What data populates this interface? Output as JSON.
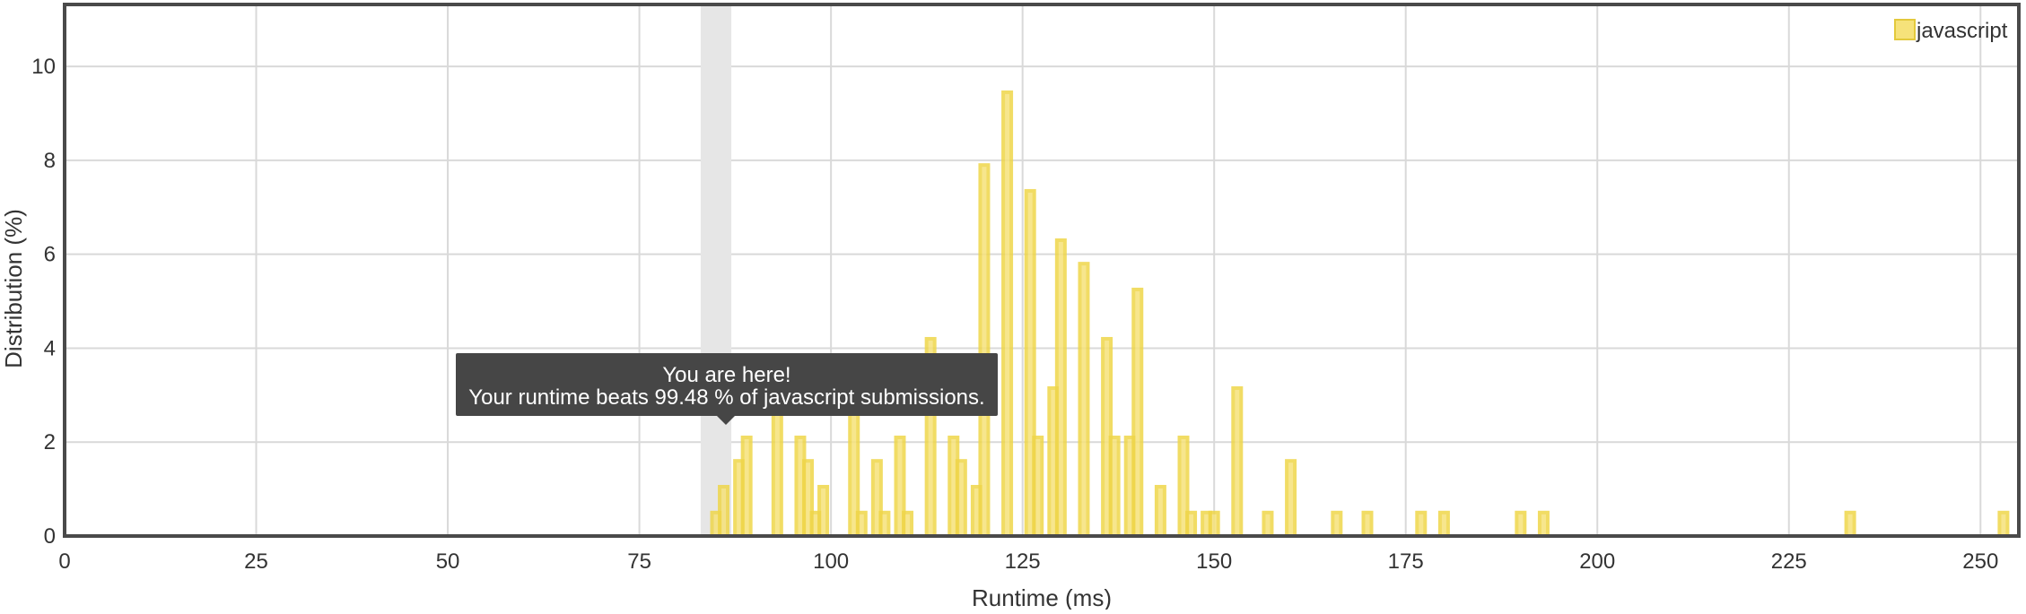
{
  "chart_data": {
    "type": "bar",
    "title": "",
    "xlabel": "Runtime (ms)",
    "ylabel": "Distribution (%)",
    "xlim": [
      0,
      255
    ],
    "ylim": [
      0,
      11.3
    ],
    "x_ticks": [
      0,
      25,
      50,
      75,
      100,
      125,
      150,
      175,
      200,
      225,
      250
    ],
    "y_ticks": [
      0,
      2,
      4,
      6,
      8,
      10
    ],
    "grid": true,
    "legend_position": "top-right",
    "series": [
      {
        "name": "javascript",
        "color": "#f6e27a",
        "x": [
          85,
          86,
          88,
          89,
          93,
          96,
          97,
          98,
          99,
          103,
          104,
          106,
          107,
          109,
          110,
          113,
          116,
          117,
          119,
          120,
          123,
          126,
          127,
          129,
          130,
          133,
          136,
          137,
          139,
          140,
          143,
          146,
          147,
          149,
          150,
          153,
          157,
          160,
          166,
          170,
          177,
          180,
          190,
          193,
          233,
          253
        ],
        "values": [
          0.5,
          1.05,
          1.6,
          2.1,
          2.6,
          2.1,
          1.6,
          0.5,
          1.05,
          2.6,
          0.5,
          1.6,
          0.5,
          2.1,
          0.5,
          4.2,
          2.1,
          1.6,
          1.05,
          7.9,
          9.45,
          7.35,
          2.1,
          3.15,
          6.3,
          5.8,
          4.2,
          2.1,
          2.1,
          5.25,
          1.05,
          2.1,
          0.5,
          0.5,
          0.5,
          3.15,
          0.5,
          1.6,
          0.5,
          0.5,
          0.5,
          0.5,
          0.5,
          0.5,
          0.5,
          0.5
        ]
      }
    ],
    "highlight": {
      "x_range": [
        83,
        87
      ]
    },
    "tooltip": {
      "line1": "You are here!",
      "line2": "Your runtime beats 99.48 % of javascript submissions."
    }
  }
}
